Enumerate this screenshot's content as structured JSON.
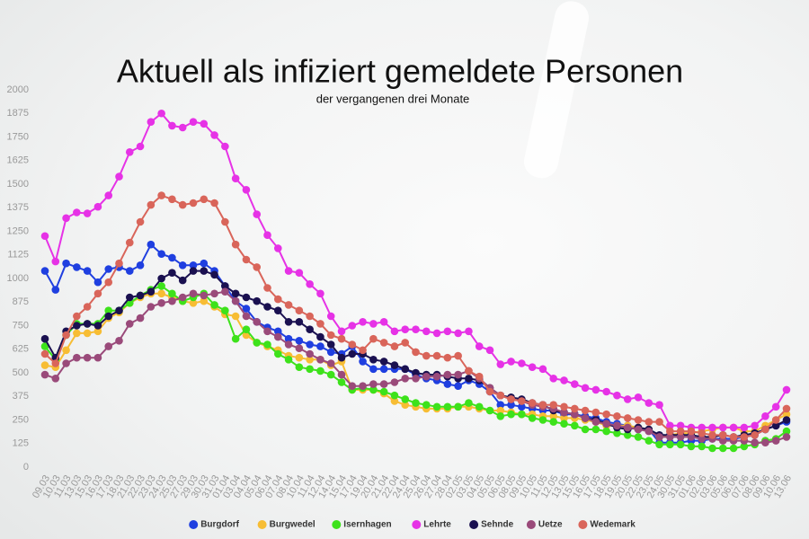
{
  "chart_data": {
    "type": "line",
    "title": "Aktuell als infiziert gemeldete Personen",
    "subtitle": "der vergangenen drei Monate",
    "categories": [
      "09.03",
      "10.03",
      "11.03",
      "13.03",
      "15.03",
      "16.03",
      "17.03",
      "18.03",
      "21.03",
      "22.03",
      "23.03",
      "24.03",
      "25.03",
      "27.03",
      "29.03",
      "30.03",
      "31.03",
      "01.04",
      "03.04",
      "04.04",
      "05.04",
      "06.04",
      "07.04",
      "08.04",
      "10.04",
      "11.04",
      "12.04",
      "14.04",
      "15.04",
      "17.04",
      "19.04",
      "20.04",
      "21.04",
      "22.04",
      "24.04",
      "25.04",
      "26.04",
      "27.04",
      "28.04",
      "02.05",
      "03.05",
      "04.05",
      "05.05",
      "06.05",
      "08.05",
      "09.05",
      "10.05",
      "11.05",
      "12.05",
      "13.05",
      "15.05",
      "16.05",
      "17.05",
      "18.05",
      "19.05",
      "20.05",
      "22.05",
      "23.05",
      "24.05",
      "30.05",
      "31.05",
      "01.06",
      "02.06",
      "03.06",
      "05.06",
      "06.06",
      "07.06",
      "08.06",
      "09.06",
      "10.06",
      "13.06"
    ],
    "ylim": [
      0,
      2000
    ],
    "yticks": [
      0,
      125,
      250,
      375,
      500,
      625,
      750,
      875,
      1000,
      1125,
      1250,
      1375,
      1500,
      1625,
      1750,
      1875,
      2000
    ],
    "grid": false,
    "series": [
      {
        "name": "Burgdorf",
        "color": "#1f3fe0",
        "values": [
          1040,
          940,
          1080,
          1060,
          1040,
          980,
          1050,
          1060,
          1040,
          1070,
          1180,
          1130,
          1110,
          1070,
          1070,
          1080,
          1040,
          960,
          880,
          840,
          770,
          740,
          720,
          680,
          670,
          650,
          640,
          610,
          600,
          640,
          560,
          520,
          520,
          520,
          520,
          490,
          470,
          460,
          440,
          430,
          460,
          440,
          400,
          330,
          330,
          320,
          310,
          300,
          300,
          280,
          280,
          270,
          260,
          240,
          230,
          220,
          200,
          200,
          130,
          130,
          130,
          140,
          140,
          150,
          150,
          150,
          160,
          170,
          200,
          220,
          240
        ]
      },
      {
        "name": "Burgwedel",
        "color": "#f7bd34",
        "values": [
          540,
          530,
          620,
          710,
          710,
          720,
          790,
          820,
          870,
          900,
          920,
          920,
          900,
          880,
          870,
          880,
          850,
          810,
          800,
          700,
          660,
          640,
          620,
          590,
          580,
          570,
          570,
          540,
          560,
          410,
          410,
          410,
          390,
          350,
          330,
          320,
          310,
          310,
          310,
          320,
          320,
          310,
          300,
          300,
          290,
          280,
          280,
          270,
          270,
          260,
          260,
          250,
          240,
          220,
          220,
          220,
          210,
          200,
          160,
          170,
          180,
          180,
          190,
          200,
          210,
          210,
          190,
          190,
          220,
          250,
          280
        ]
      },
      {
        "name": "Isernhagen",
        "color": "#3de21b",
        "values": [
          640,
          570,
          700,
          760,
          760,
          760,
          830,
          830,
          870,
          910,
          940,
          960,
          920,
          880,
          900,
          920,
          860,
          830,
          680,
          730,
          660,
          650,
          600,
          570,
          530,
          520,
          510,
          490,
          450,
          410,
          420,
          410,
          400,
          380,
          360,
          340,
          330,
          320,
          320,
          320,
          340,
          320,
          300,
          270,
          280,
          280,
          260,
          250,
          240,
          230,
          220,
          200,
          200,
          190,
          180,
          170,
          160,
          140,
          120,
          120,
          120,
          110,
          110,
          100,
          100,
          100,
          110,
          120,
          140,
          150,
          190
        ]
      },
      {
        "name": "Lehrte",
        "color": "#e632e6",
        "values": [
          1225,
          1090,
          1320,
          1350,
          1345,
          1380,
          1440,
          1540,
          1670,
          1700,
          1830,
          1875,
          1810,
          1800,
          1830,
          1820,
          1760,
          1700,
          1530,
          1470,
          1340,
          1230,
          1160,
          1040,
          1030,
          970,
          920,
          800,
          720,
          750,
          770,
          760,
          770,
          720,
          730,
          730,
          720,
          710,
          720,
          710,
          720,
          640,
          620,
          545,
          560,
          550,
          530,
          520,
          470,
          460,
          440,
          420,
          410,
          400,
          380,
          360,
          370,
          340,
          330,
          220,
          220,
          210,
          210,
          210,
          210,
          210,
          210,
          220,
          270,
          320,
          410
        ]
      },
      {
        "name": "Sehnde",
        "color": "#1a1050",
        "values": [
          680,
          580,
          720,
          750,
          760,
          750,
          800,
          830,
          900,
          910,
          930,
          1000,
          1030,
          990,
          1040,
          1040,
          1020,
          960,
          920,
          900,
          880,
          850,
          830,
          770,
          770,
          730,
          690,
          650,
          580,
          600,
          600,
          570,
          560,
          540,
          520,
          500,
          490,
          490,
          480,
          470,
          470,
          460,
          420,
          380,
          370,
          360,
          340,
          330,
          300,
          290,
          280,
          260,
          250,
          230,
          210,
          200,
          210,
          200,
          170,
          170,
          170,
          170,
          160,
          160,
          170,
          160,
          170,
          180,
          200,
          220,
          250
        ]
      },
      {
        "name": "Uetze",
        "color": "#9a4a7a",
        "values": [
          490,
          470,
          550,
          580,
          580,
          580,
          640,
          670,
          760,
          790,
          850,
          870,
          880,
          900,
          920,
          910,
          920,
          930,
          880,
          800,
          770,
          720,
          690,
          650,
          630,
          600,
          570,
          550,
          490,
          430,
          430,
          440,
          440,
          450,
          470,
          470,
          480,
          480,
          490,
          490,
          510,
          470,
          420,
          380,
          360,
          350,
          330,
          320,
          310,
          290,
          280,
          260,
          240,
          230,
          220,
          210,
          200,
          190,
          160,
          160,
          160,
          160,
          150,
          150,
          140,
          140,
          140,
          130,
          130,
          140,
          160
        ]
      },
      {
        "name": "Wedemark",
        "color": "#d9655a",
        "values": [
          600,
          550,
          700,
          800,
          850,
          920,
          980,
          1080,
          1190,
          1300,
          1390,
          1440,
          1420,
          1390,
          1400,
          1420,
          1400,
          1300,
          1180,
          1100,
          1060,
          950,
          890,
          860,
          830,
          800,
          760,
          700,
          680,
          650,
          620,
          680,
          660,
          640,
          660,
          610,
          590,
          590,
          580,
          590,
          510,
          480,
          400,
          380,
          360,
          350,
          340,
          330,
          330,
          320,
          310,
          300,
          290,
          280,
          270,
          260,
          250,
          240,
          240,
          190,
          190,
          190,
          180,
          170,
          170,
          160,
          160,
          170,
          200,
          250,
          310
        ]
      }
    ]
  }
}
